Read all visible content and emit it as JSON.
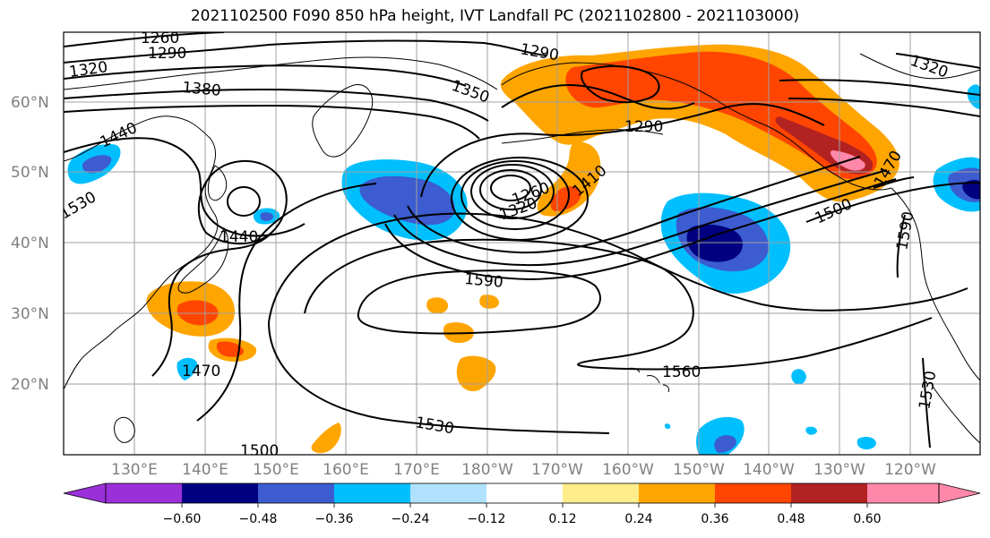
{
  "title": "2021102500 F090 850 hPa height, IVT Landfall PC (2021102800 - 2021103000)",
  "lat_labels": [
    "60°N",
    "50°N",
    "40°N",
    "30°N",
    "20°N"
  ],
  "lon_labels": [
    "130°E",
    "140°E",
    "150°E",
    "160°E",
    "170°E",
    "180°W",
    "170°W",
    "160°W",
    "150°W",
    "140°W",
    "130°W",
    "120°W"
  ],
  "colorbar": {
    "ticks": [
      "−0.60",
      "−0.48",
      "−0.36",
      "−0.24",
      "−0.12",
      "0.12",
      "0.24",
      "0.36",
      "0.48",
      "0.60"
    ],
    "colors": [
      "#9b30d9",
      "#000080",
      "#3c5ccf",
      "#00bfff",
      "#b0e2ff",
      "#ffffff",
      "#ffec8b",
      "#ffa500",
      "#ff4500",
      "#b22222",
      "#ff88aa"
    ]
  },
  "contour_labels": [
    "1260",
    "1290",
    "1320",
    "1380",
    "1350",
    "1290",
    "1290",
    "1320",
    "1440",
    "1530",
    "1440",
    "1260",
    "1320",
    "1410",
    "1470",
    "1500",
    "1590",
    "1590",
    "1470",
    "1560",
    "1500",
    "1530",
    "1530"
  ],
  "fill_colors": {
    "orange": "#ffa500",
    "red": "#ff4500",
    "darkred": "#b22222",
    "pink": "#ff88aa",
    "sky": "#00bfff",
    "blue": "#3c5ccf",
    "navy": "#000080",
    "yellow": "#ffec8b"
  }
}
